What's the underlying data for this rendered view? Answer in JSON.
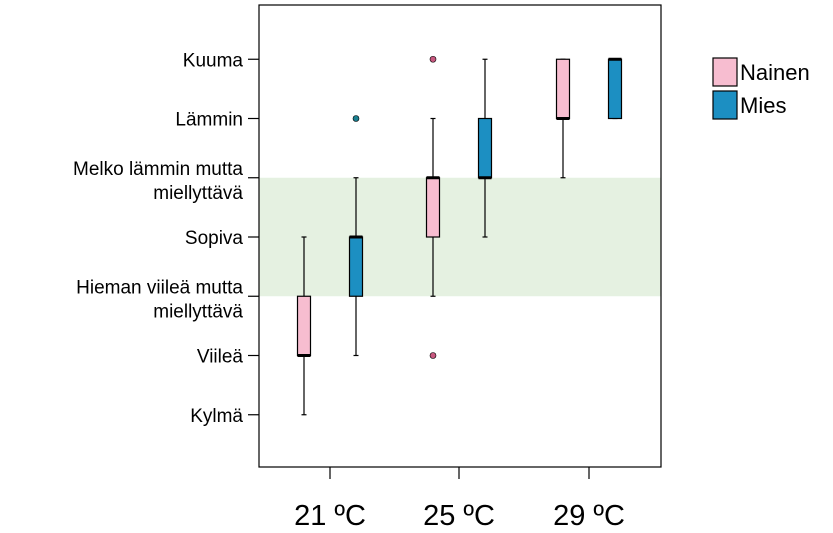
{
  "chart_data": {
    "type": "boxplot",
    "title": "",
    "xlabel": "",
    "ylabel": "",
    "y_levels": [
      {
        "value": -3,
        "label": [
          "Kylmä"
        ]
      },
      {
        "value": -2,
        "label": [
          "Viileä"
        ]
      },
      {
        "value": -1,
        "label": [
          "Hieman viileä mutta",
          "miellyttävä"
        ]
      },
      {
        "value": 0,
        "label": [
          "Sopiva"
        ]
      },
      {
        "value": 1,
        "label": [
          "Melko lämmin mutta",
          "miellyttävä"
        ]
      },
      {
        "value": 2,
        "label": [
          "Lämmin"
        ]
      },
      {
        "value": 3,
        "label": [
          "Kuuma"
        ]
      }
    ],
    "ylim": [
      -4,
      4.4
    ],
    "comfort_band": [
      -1,
      1
    ],
    "categories": [
      "21 ºC",
      "25 ºC",
      "29 ºC"
    ],
    "series": [
      {
        "name": "Nainen",
        "color": "#f7bdd0",
        "outlier_color": "#c7587f",
        "boxes": [
          {
            "whisker_low": -3,
            "q1": -2,
            "median": -2,
            "q3": -1,
            "whisker_high": 0,
            "outliers": []
          },
          {
            "whisker_low": -1,
            "q1": 0,
            "median": 1,
            "q3": 1,
            "whisker_high": 2,
            "outliers": [
              3,
              -2
            ]
          },
          {
            "whisker_low": 1,
            "q1": 2,
            "median": 2,
            "q3": 3,
            "whisker_high": 3,
            "outliers": []
          }
        ]
      },
      {
        "name": "Mies",
        "color": "#1c8fc2",
        "outlier_color": "#1a7f8f",
        "boxes": [
          {
            "whisker_low": -2,
            "q1": -1,
            "median": 0,
            "q3": 0,
            "whisker_high": 1,
            "outliers": [
              2
            ]
          },
          {
            "whisker_low": 0,
            "q1": 1,
            "median": 1,
            "q3": 2,
            "whisker_high": 3,
            "outliers": []
          },
          {
            "whisker_low": 2,
            "q1": 2,
            "median": 3,
            "q3": 3,
            "whisker_high": 3,
            "outliers": []
          }
        ]
      }
    ],
    "legend_position": "top-right",
    "grid": false,
    "band_color": "#e5f1e1"
  }
}
